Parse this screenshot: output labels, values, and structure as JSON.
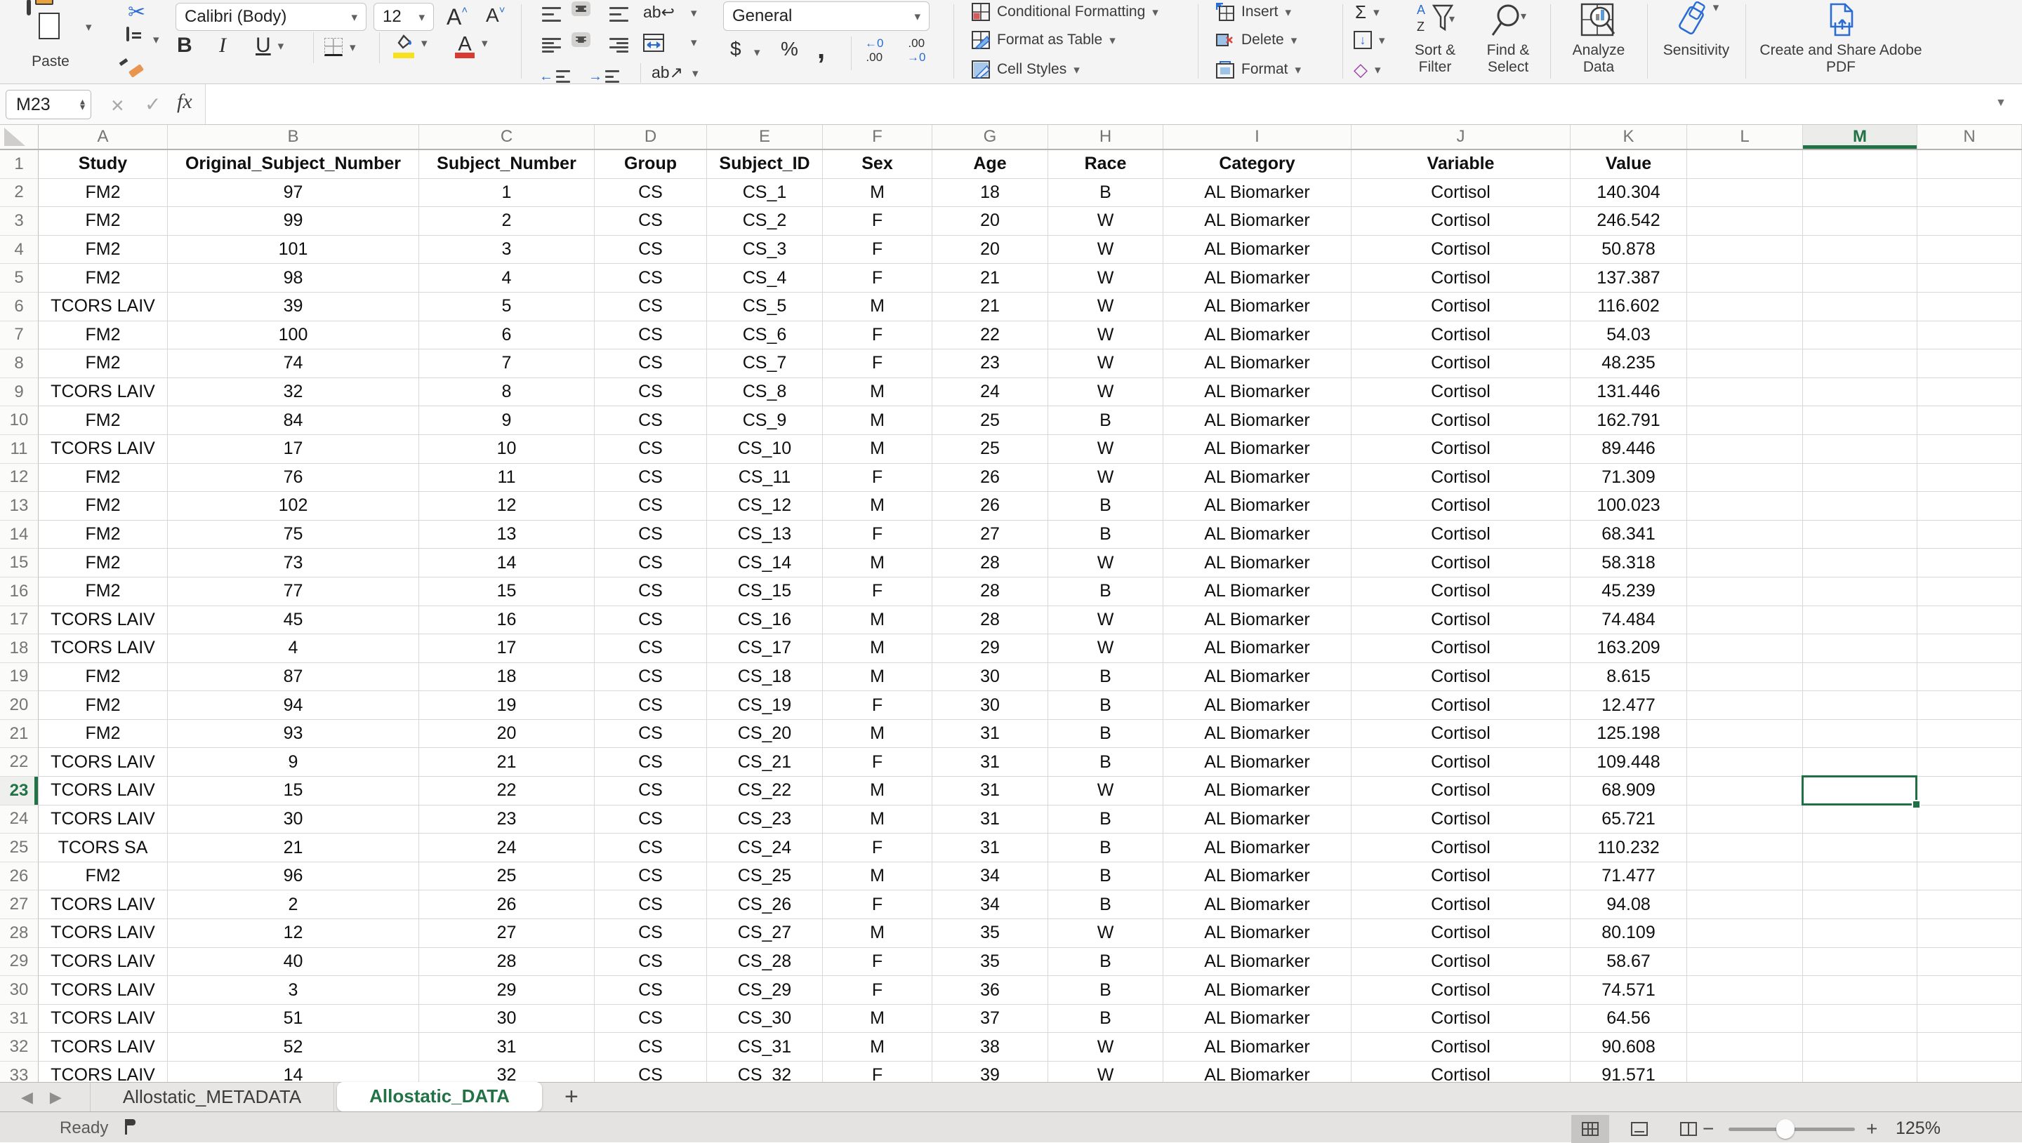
{
  "icons": {
    "chevron": "▾",
    "up_step": "▴",
    "down_step": "▾",
    "close": "×",
    "check": "✓",
    "dropdown": "▼",
    "scissors": "✂",
    "clear_diamond": "◇",
    "left_arrow": "◀",
    "right_arrow": "▶",
    "wrap_text": "ab↩",
    "orientation": "ab↗",
    "outdent_arrow": "←",
    "indent_arrow": "→"
  },
  "ribbon": {
    "paste_label": "Paste",
    "font_name": "Calibri (Body)",
    "font_size": "12",
    "grow_font": "A",
    "shrink_font": "A",
    "bold": "B",
    "italic": "I",
    "underline": "U",
    "font_color_letter": "A",
    "number_format": "General",
    "currency": "$",
    "percent": "%",
    "comma": ",",
    "inc_dec_top": "←0",
    "inc_dec_bot": ".00",
    "dec_dec_top": ".00",
    "dec_dec_bot": "→0",
    "conditional_formatting": "Conditional Formatting",
    "format_as_table": "Format as Table",
    "cell_styles": "Cell Styles",
    "insert": "Insert",
    "delete": "Delete",
    "format": "Format",
    "autosum": "Σ",
    "sort_filter": "Sort & Filter",
    "find_select": "Find & Select",
    "analyze_data": "Analyze Data",
    "sensitivity": "Sensitivity",
    "adobe_pdf": "Create and Share Adobe PDF"
  },
  "formula_bar": {
    "name_box": "M23",
    "fx": "fx",
    "formula": ""
  },
  "grid": {
    "column_letters": [
      "A",
      "B",
      "C",
      "D",
      "E",
      "F",
      "G",
      "H",
      "I",
      "J",
      "K",
      "L",
      "M",
      "N"
    ],
    "selected_column": "M",
    "selected_row": 23,
    "active_cell": "M23",
    "header_row": [
      "Study",
      "Original_Subject_Number",
      "Subject_Number",
      "Group",
      "Subject_ID",
      "Sex",
      "Age",
      "Race",
      "Category",
      "Variable",
      "Value"
    ],
    "data_rows": [
      [
        "FM2",
        "97",
        "1",
        "CS",
        "CS_1",
        "M",
        "18",
        "B",
        "AL Biomarker",
        "Cortisol",
        "140.304"
      ],
      [
        "FM2",
        "99",
        "2",
        "CS",
        "CS_2",
        "F",
        "20",
        "W",
        "AL Biomarker",
        "Cortisol",
        "246.542"
      ],
      [
        "FM2",
        "101",
        "3",
        "CS",
        "CS_3",
        "F",
        "20",
        "W",
        "AL Biomarker",
        "Cortisol",
        "50.878"
      ],
      [
        "FM2",
        "98",
        "4",
        "CS",
        "CS_4",
        "F",
        "21",
        "W",
        "AL Biomarker",
        "Cortisol",
        "137.387"
      ],
      [
        "TCORS LAIV",
        "39",
        "5",
        "CS",
        "CS_5",
        "M",
        "21",
        "W",
        "AL Biomarker",
        "Cortisol",
        "116.602"
      ],
      [
        "FM2",
        "100",
        "6",
        "CS",
        "CS_6",
        "F",
        "22",
        "W",
        "AL Biomarker",
        "Cortisol",
        "54.03"
      ],
      [
        "FM2",
        "74",
        "7",
        "CS",
        "CS_7",
        "F",
        "23",
        "W",
        "AL Biomarker",
        "Cortisol",
        "48.235"
      ],
      [
        "TCORS LAIV",
        "32",
        "8",
        "CS",
        "CS_8",
        "M",
        "24",
        "W",
        "AL Biomarker",
        "Cortisol",
        "131.446"
      ],
      [
        "FM2",
        "84",
        "9",
        "CS",
        "CS_9",
        "M",
        "25",
        "B",
        "AL Biomarker",
        "Cortisol",
        "162.791"
      ],
      [
        "TCORS LAIV",
        "17",
        "10",
        "CS",
        "CS_10",
        "M",
        "25",
        "W",
        "AL Biomarker",
        "Cortisol",
        "89.446"
      ],
      [
        "FM2",
        "76",
        "11",
        "CS",
        "CS_11",
        "F",
        "26",
        "W",
        "AL Biomarker",
        "Cortisol",
        "71.309"
      ],
      [
        "FM2",
        "102",
        "12",
        "CS",
        "CS_12",
        "M",
        "26",
        "B",
        "AL Biomarker",
        "Cortisol",
        "100.023"
      ],
      [
        "FM2",
        "75",
        "13",
        "CS",
        "CS_13",
        "F",
        "27",
        "B",
        "AL Biomarker",
        "Cortisol",
        "68.341"
      ],
      [
        "FM2",
        "73",
        "14",
        "CS",
        "CS_14",
        "M",
        "28",
        "W",
        "AL Biomarker",
        "Cortisol",
        "58.318"
      ],
      [
        "FM2",
        "77",
        "15",
        "CS",
        "CS_15",
        "F",
        "28",
        "B",
        "AL Biomarker",
        "Cortisol",
        "45.239"
      ],
      [
        "TCORS LAIV",
        "45",
        "16",
        "CS",
        "CS_16",
        "M",
        "28",
        "W",
        "AL Biomarker",
        "Cortisol",
        "74.484"
      ],
      [
        "TCORS LAIV",
        "4",
        "17",
        "CS",
        "CS_17",
        "M",
        "29",
        "W",
        "AL Biomarker",
        "Cortisol",
        "163.209"
      ],
      [
        "FM2",
        "87",
        "18",
        "CS",
        "CS_18",
        "M",
        "30",
        "B",
        "AL Biomarker",
        "Cortisol",
        "8.615"
      ],
      [
        "FM2",
        "94",
        "19",
        "CS",
        "CS_19",
        "F",
        "30",
        "B",
        "AL Biomarker",
        "Cortisol",
        "12.477"
      ],
      [
        "FM2",
        "93",
        "20",
        "CS",
        "CS_20",
        "M",
        "31",
        "B",
        "AL Biomarker",
        "Cortisol",
        "125.198"
      ],
      [
        "TCORS LAIV",
        "9",
        "21",
        "CS",
        "CS_21",
        "F",
        "31",
        "B",
        "AL Biomarker",
        "Cortisol",
        "109.448"
      ],
      [
        "TCORS LAIV",
        "15",
        "22",
        "CS",
        "CS_22",
        "M",
        "31",
        "W",
        "AL Biomarker",
        "Cortisol",
        "68.909"
      ],
      [
        "TCORS LAIV",
        "30",
        "23",
        "CS",
        "CS_23",
        "M",
        "31",
        "B",
        "AL Biomarker",
        "Cortisol",
        "65.721"
      ],
      [
        "TCORS SA",
        "21",
        "24",
        "CS",
        "CS_24",
        "F",
        "31",
        "B",
        "AL Biomarker",
        "Cortisol",
        "110.232"
      ],
      [
        "FM2",
        "96",
        "25",
        "CS",
        "CS_25",
        "M",
        "34",
        "B",
        "AL Biomarker",
        "Cortisol",
        "71.477"
      ],
      [
        "TCORS LAIV",
        "2",
        "26",
        "CS",
        "CS_26",
        "F",
        "34",
        "B",
        "AL Biomarker",
        "Cortisol",
        "94.08"
      ],
      [
        "TCORS LAIV",
        "12",
        "27",
        "CS",
        "CS_27",
        "M",
        "35",
        "W",
        "AL Biomarker",
        "Cortisol",
        "80.109"
      ],
      [
        "TCORS LAIV",
        "40",
        "28",
        "CS",
        "CS_28",
        "F",
        "35",
        "B",
        "AL Biomarker",
        "Cortisol",
        "58.67"
      ],
      [
        "TCORS LAIV",
        "3",
        "29",
        "CS",
        "CS_29",
        "F",
        "36",
        "B",
        "AL Biomarker",
        "Cortisol",
        "74.571"
      ],
      [
        "TCORS LAIV",
        "51",
        "30",
        "CS",
        "CS_30",
        "M",
        "37",
        "B",
        "AL Biomarker",
        "Cortisol",
        "64.56"
      ],
      [
        "TCORS LAIV",
        "52",
        "31",
        "CS",
        "CS_31",
        "M",
        "38",
        "W",
        "AL Biomarker",
        "Cortisol",
        "90.608"
      ],
      [
        "TCORS LAIV",
        "14",
        "32",
        "CS",
        "CS_32",
        "F",
        "39",
        "W",
        "AL Biomarker",
        "Cortisol",
        "91.571"
      ]
    ]
  },
  "sheet_tabs": {
    "tabs": [
      {
        "label": "Allostatic_METADATA",
        "active": false
      },
      {
        "label": "Allostatic_DATA",
        "active": true
      }
    ],
    "add": "+"
  },
  "status_bar": {
    "mode": "Ready",
    "zoom_level": "125%"
  },
  "colors": {
    "accent_green": "#217346",
    "fill_yellow": "#f7e01d",
    "font_red": "#d83b31"
  }
}
